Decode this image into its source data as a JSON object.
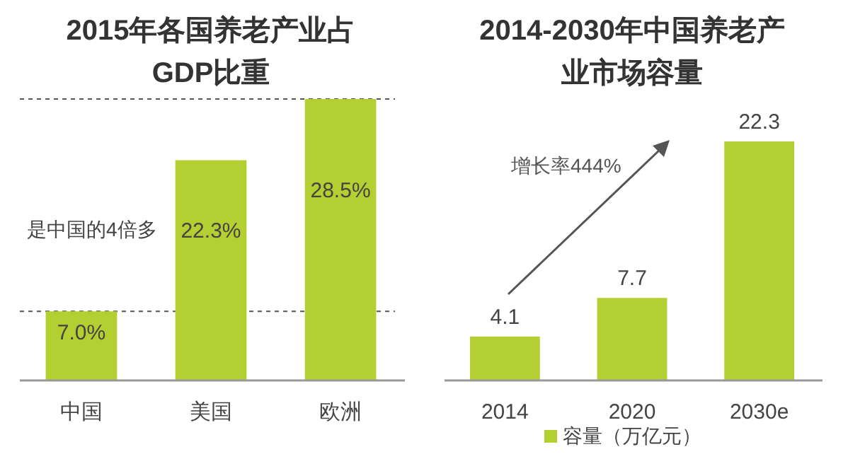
{
  "chart_data": [
    {
      "type": "bar",
      "title": "2015年各国养老产业占GDP比重",
      "categories": [
        "中国",
        "美国",
        "欧洲"
      ],
      "values": [
        7.0,
        22.3,
        28.5
      ],
      "color": "#b3cf32",
      "value_labels": [
        "7.0%",
        "22.3%",
        "28.5%"
      ],
      "ref_lines": [
        {
          "axis": "y",
          "value": 7.0,
          "line_style": "dashed",
          "color": "#555555"
        },
        {
          "axis": "y",
          "value": 28.5,
          "line_style": "dashed",
          "color": "#555555"
        }
      ],
      "annotations": [
        "是中国的4倍多"
      ]
    },
    {
      "type": "bar",
      "title": "2014-2030年中国养老产业市场容量",
      "categories": [
        "2014",
        "2020",
        "2030e"
      ],
      "series": [
        {
          "name": "容量（万亿元）",
          "color": "#b3cf32",
          "values": [
            4.1,
            7.7,
            22.3
          ]
        }
      ],
      "data_labels": true,
      "legend": "bottom",
      "annotations": [
        "增长率444%"
      ]
    }
  ]
}
